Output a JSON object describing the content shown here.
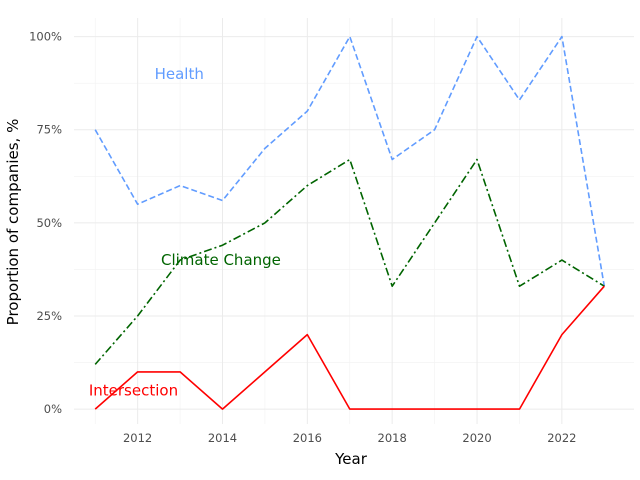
{
  "chart_data": {
    "type": "line",
    "xlabel": "Year",
    "ylabel": "Proportion of companies, %",
    "xlim": [
      2010.5,
      2023.7
    ],
    "ylim": [
      -0.04,
      1.05
    ],
    "x_ticks": [
      2012,
      2014,
      2016,
      2018,
      2020,
      2022
    ],
    "x_tick_labels": [
      "2012",
      "2014",
      "2016",
      "2018",
      "2020",
      "2022"
    ],
    "y_ticks": [
      0,
      0.25,
      0.5,
      0.75,
      1.0
    ],
    "y_tick_labels": [
      "0%",
      "25%",
      "50%",
      "75%",
      "100%"
    ],
    "grid": true,
    "x": [
      2011,
      2012,
      2013,
      2014,
      2015,
      2016,
      2017,
      2018,
      2019,
      2020,
      2021,
      2022,
      2023
    ],
    "series": [
      {
        "name": "Health",
        "color": "#619CFF",
        "dash": "dashed",
        "values": [
          0.75,
          0.55,
          0.6,
          0.56,
          0.7,
          0.8,
          1.0,
          0.67,
          0.75,
          1.0,
          0.83,
          1.0,
          0.33
        ],
        "label_at": [
          2012.4,
          0.9
        ],
        "label_anchor": "start"
      },
      {
        "name": "Climate Change",
        "color": "#006400",
        "dash": "dashdot",
        "values": [
          0.12,
          0.25,
          0.4,
          0.44,
          0.5,
          0.6,
          0.67,
          0.33,
          0.5,
          0.67,
          0.33,
          0.4,
          0.33
        ],
        "label_at": [
          2012.55,
          0.4
        ],
        "label_anchor": "start"
      },
      {
        "name": "Intersection",
        "color": "#FF0000",
        "dash": "solid",
        "values": [
          0.0,
          0.1,
          0.1,
          0.0,
          0.1,
          0.2,
          0.0,
          0.0,
          0.0,
          0.0,
          0.0,
          0.2,
          0.33
        ],
        "label_at": [
          2010.85,
          0.05
        ],
        "label_anchor": "start"
      }
    ]
  }
}
